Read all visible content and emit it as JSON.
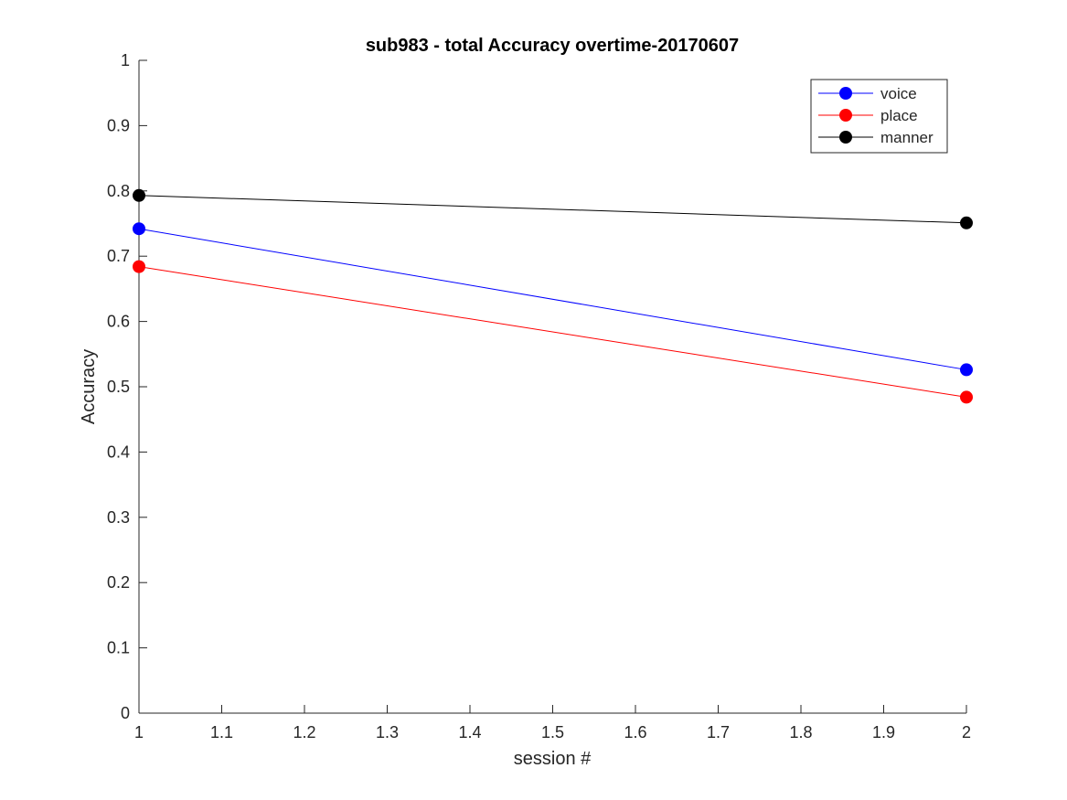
{
  "chart_data": {
    "type": "line",
    "title": "sub983 - total Accuracy overtime-20170607",
    "xlabel": "session #",
    "ylabel": "Accuracy",
    "xlim": [
      1,
      2
    ],
    "ylim": [
      0,
      1
    ],
    "xticks": [
      1,
      1.1,
      1.2,
      1.3,
      1.4,
      1.5,
      1.6,
      1.7,
      1.8,
      1.9,
      2
    ],
    "xtick_labels": [
      "1",
      "1.1",
      "1.2",
      "1.3",
      "1.4",
      "1.5",
      "1.6",
      "1.7",
      "1.8",
      "1.9",
      "2"
    ],
    "yticks": [
      0,
      0.1,
      0.2,
      0.3,
      0.4,
      0.5,
      0.6,
      0.7,
      0.8,
      0.9,
      1
    ],
    "ytick_labels": [
      "0",
      "0.1",
      "0.2",
      "0.3",
      "0.4",
      "0.5",
      "0.6",
      "0.7",
      "0.8",
      "0.9",
      "1"
    ],
    "grid": false,
    "legend_position": "top-right",
    "x": [
      1,
      2
    ],
    "series": [
      {
        "name": "voice",
        "values": [
          0.742,
          0.526
        ],
        "color": "#0000ff"
      },
      {
        "name": "place",
        "values": [
          0.684,
          0.484
        ],
        "color": "#ff0000"
      },
      {
        "name": "manner",
        "values": [
          0.793,
          0.751
        ],
        "color": "#000000"
      }
    ]
  }
}
